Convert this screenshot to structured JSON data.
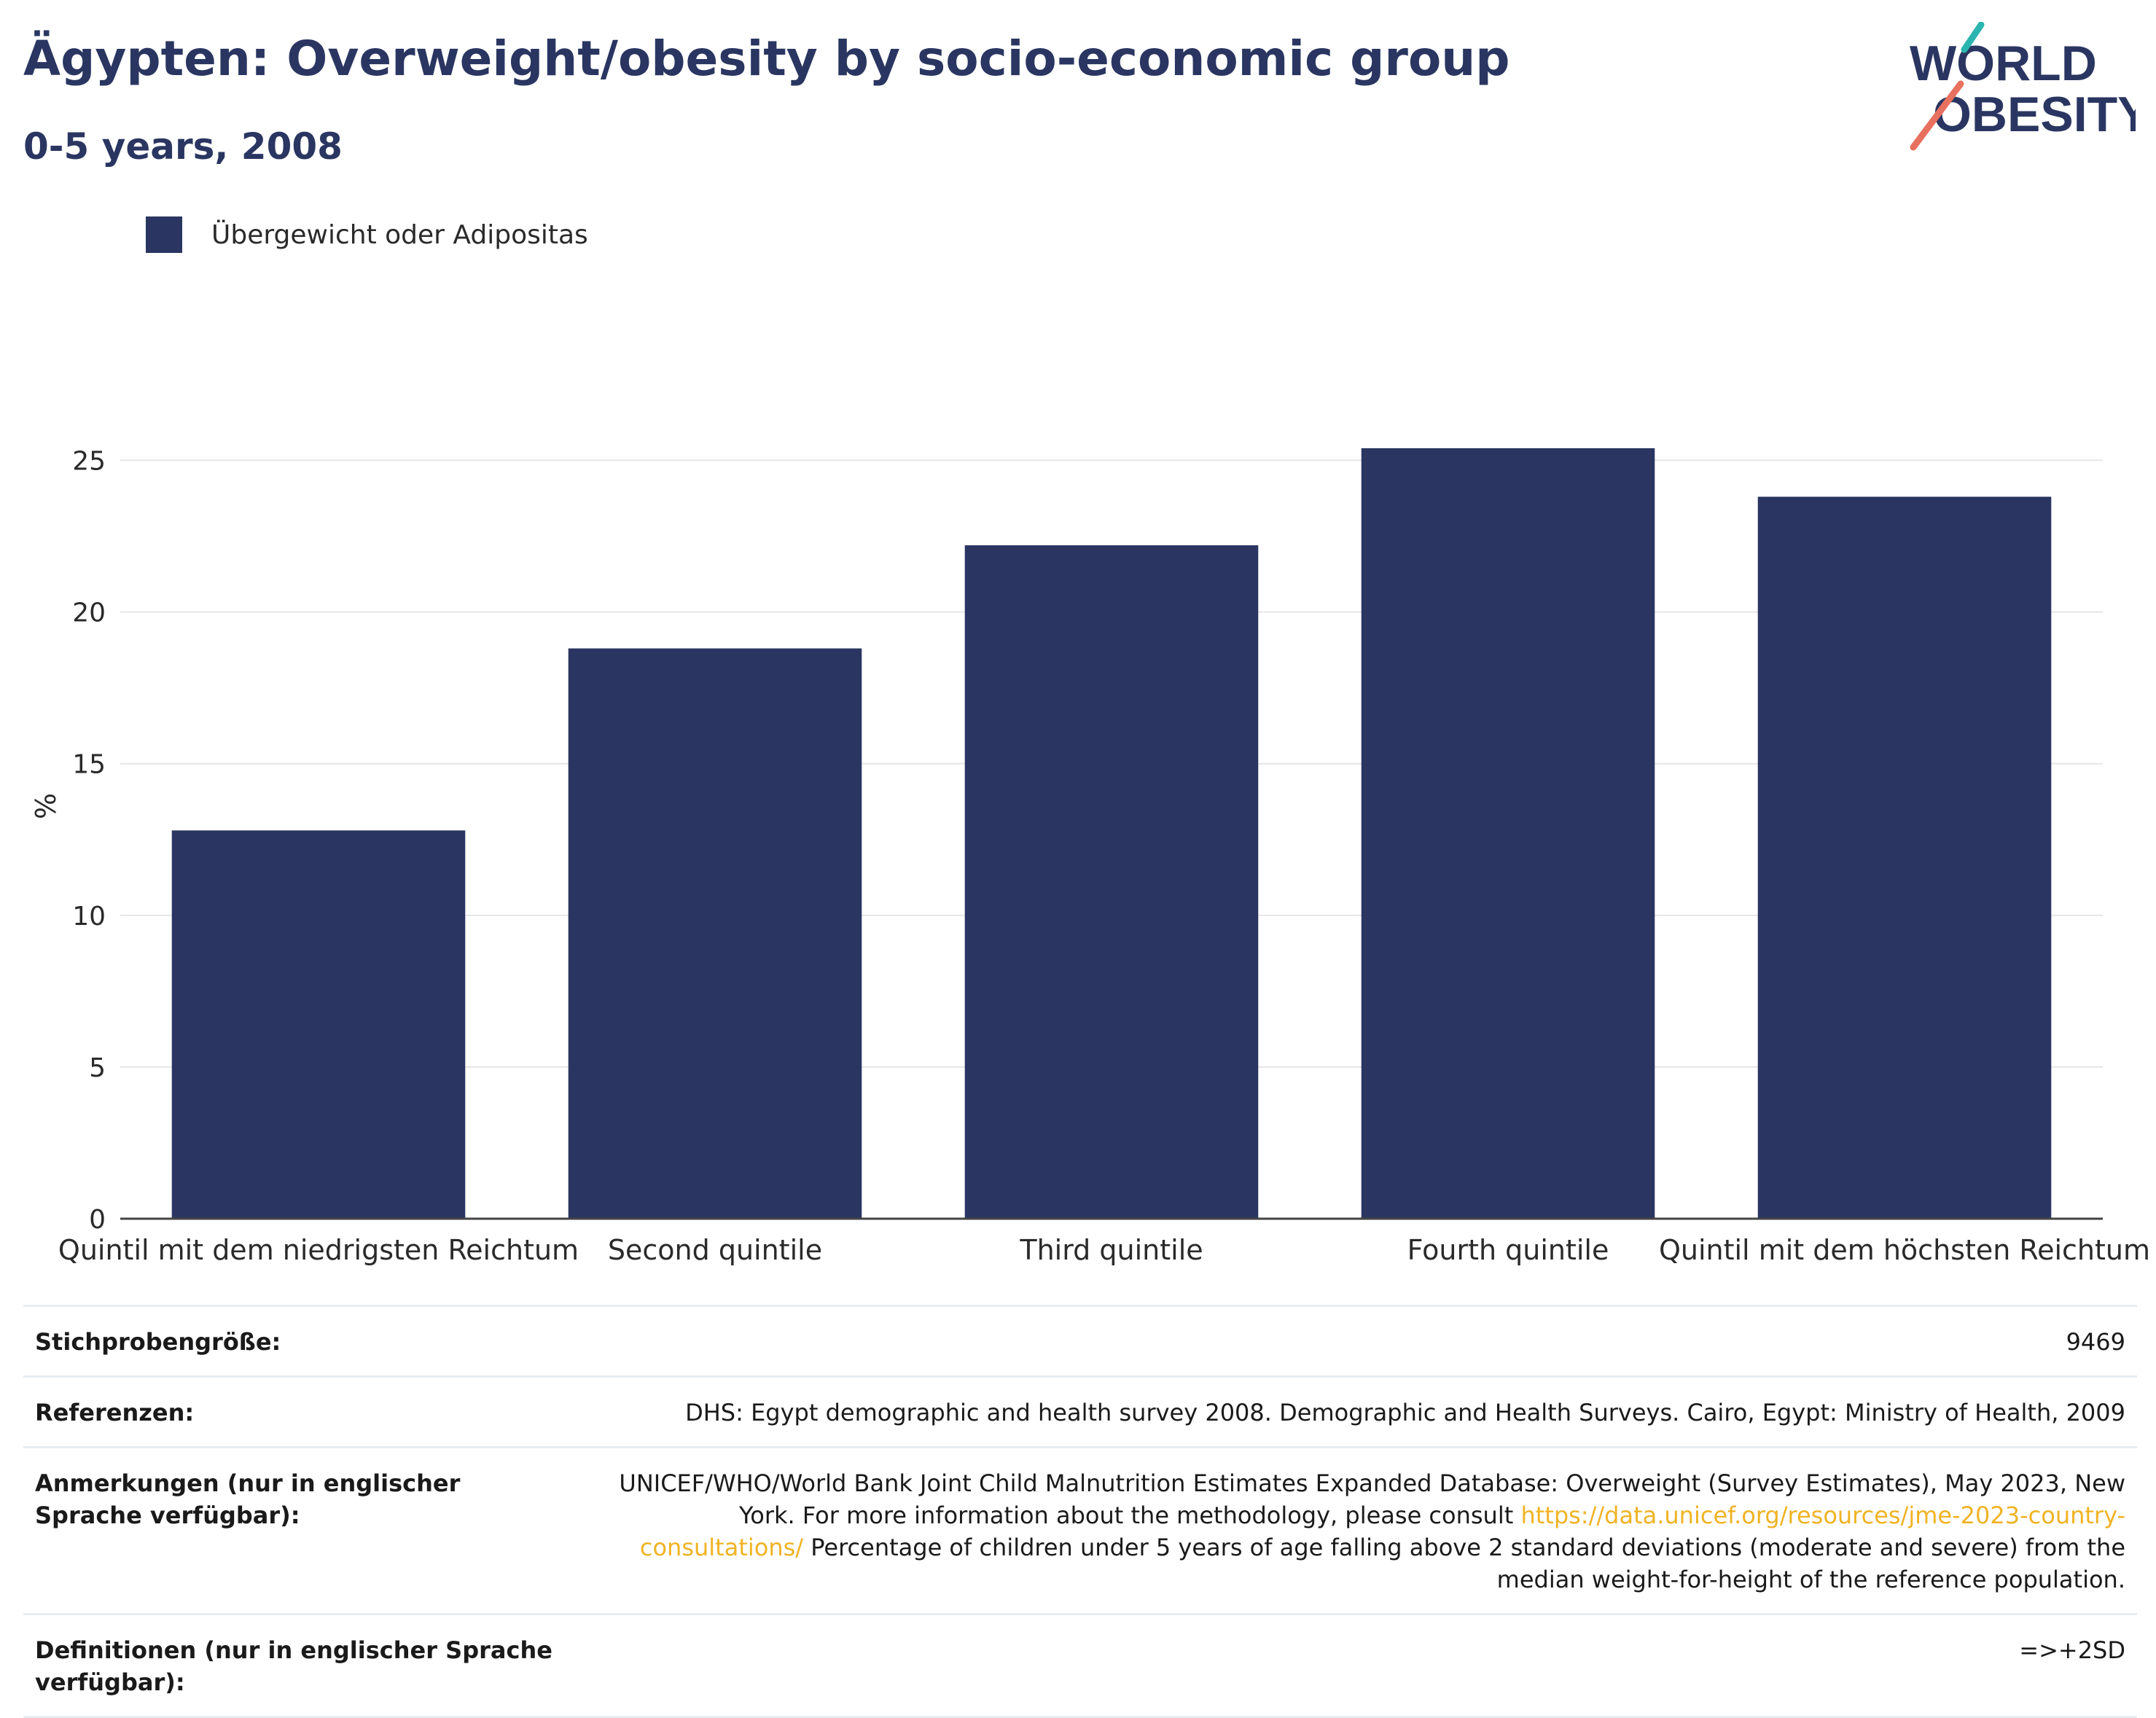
{
  "header": {
    "title": "Ägypten: Overweight/obesity by socio-economic group",
    "subtitle": "0-5 years, 2008"
  },
  "logo": {
    "line1": "WORLD",
    "line2": "OBESITY",
    "accent_teal": "#2bb5b0",
    "accent_coral": "#e8705f"
  },
  "colors": {
    "bar": "#2a3661",
    "text": "#2a3661",
    "link": "#f0b323",
    "grid": "#e6e6e6"
  },
  "chart_data": {
    "type": "bar",
    "categories": [
      "Quintil mit dem niedrigsten Reichtum",
      "Second quintile",
      "Third quintile",
      "Fourth quintile",
      "Quintil mit dem höchsten Reichtum"
    ],
    "series": [
      {
        "name": "Übergewicht oder Adipositas",
        "values": [
          12.8,
          18.8,
          22.2,
          25.4,
          23.8
        ]
      }
    ],
    "ylabel": "%",
    "ylim": [
      0,
      27.2
    ],
    "yticks": [
      0,
      5,
      10,
      15,
      20,
      25
    ],
    "grid": true,
    "legend_position": "top-left"
  },
  "info": {
    "sample_size_label": "Stichprobengröße:",
    "sample_size_value": "9469",
    "references_label": "Referenzen:",
    "references_value": "DHS: Egypt demographic and health survey 2008. Demographic and Health Surveys. Cairo, Egypt: Ministry of Health, 2009",
    "notes_label": "Anmerkungen (nur in englischer Sprache verfügbar):",
    "notes_text_before": "UNICEF/WHO/World Bank Joint Child Malnutrition Estimates Expanded Database: Overweight (Survey Estimates), May 2023, New York. For more information about the methodology, please consult ",
    "notes_link": "https://data.unicef.org/resources/jme-2023-country-consultations/",
    "notes_text_after": " Percentage of children under 5 years of age falling above 2 standard deviations (moderate and severe) from the median weight-for-height of the reference population.",
    "definitions_label": "Definitionen (nur in englischer Sprache verfügbar):",
    "definitions_value": "=>+2SD"
  }
}
